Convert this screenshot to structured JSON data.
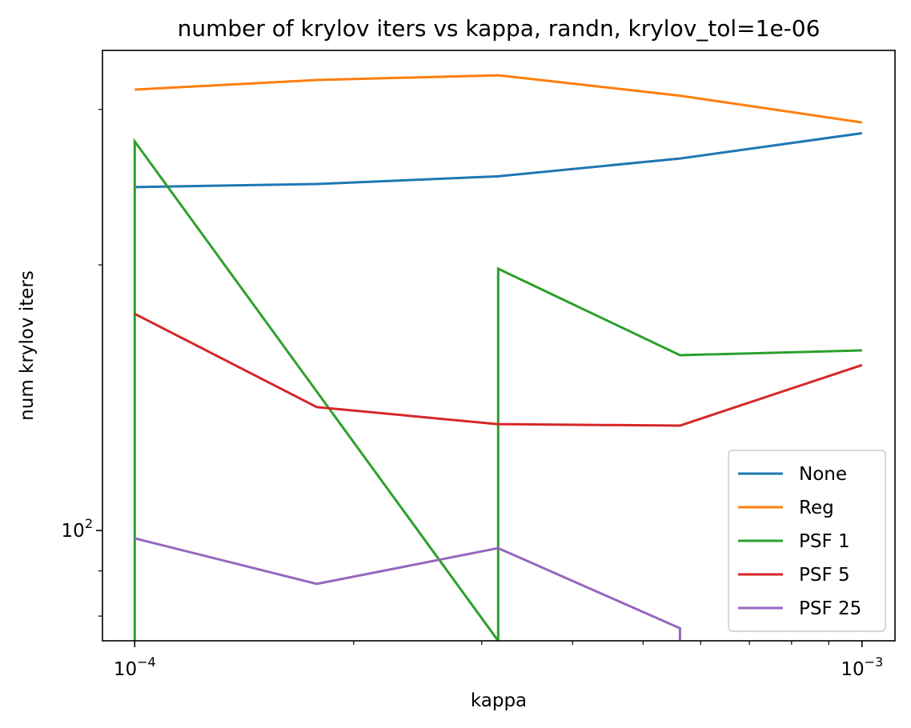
{
  "chart_data": {
    "type": "line",
    "title": "number of krylov iters vs kappa, randn, krylov_tol=1e-06",
    "xlabel": "kappa",
    "ylabel": "num krylov iters",
    "xscale": "log",
    "yscale": "log",
    "xlim": [
      9.03e-05,
      0.00111
    ],
    "ylim": [
      75,
      350
    ],
    "x_ticks": [
      {
        "value": 0.0001,
        "base": "10",
        "exp": "−4"
      },
      {
        "value": 0.001,
        "base": "10",
        "exp": "−3"
      }
    ],
    "y_ticks": [
      {
        "value": 100,
        "base": "10",
        "exp": "2"
      }
    ],
    "grid": false,
    "legend_position": "lower-right",
    "series": [
      {
        "name": "None",
        "color": "#1f77b4",
        "points": [
          [
            0.0001,
            245
          ],
          [
            0.000178,
            247
          ],
          [
            0.000316,
            252
          ],
          [
            0.000562,
            264
          ],
          [
            0.001,
            282
          ]
        ]
      },
      {
        "name": "Reg",
        "color": "#ff7f0e",
        "points": [
          [
            0.0001,
            316
          ],
          [
            0.000178,
            324
          ],
          [
            0.000316,
            328
          ],
          [
            0.000562,
            311
          ],
          [
            0.001,
            290
          ]
        ]
      },
      {
        "name": "PSF 1",
        "color": "#2ca02c",
        "points": [
          [
            0.0001,
            75
          ],
          [
            0.0001,
            276
          ],
          [
            0.000316,
            75
          ],
          [
            0.000316,
            198
          ],
          [
            0.000562,
            158
          ],
          [
            0.001,
            160
          ]
        ]
      },
      {
        "name": "PSF 5",
        "color": "#d62728",
        "points": [
          [
            0.0001,
            176
          ],
          [
            0.000178,
            138
          ],
          [
            0.000316,
            132
          ],
          [
            0.000562,
            131.5
          ],
          [
            0.001,
            154
          ]
        ]
      },
      {
        "name": "PSF 25",
        "color": "#9467bd",
        "points": [
          [
            0.0001,
            98
          ],
          [
            0.000178,
            87
          ],
          [
            0.000316,
            95.5
          ],
          [
            0.000562,
            77.5
          ],
          [
            0.000562,
            75
          ]
        ]
      }
    ]
  }
}
